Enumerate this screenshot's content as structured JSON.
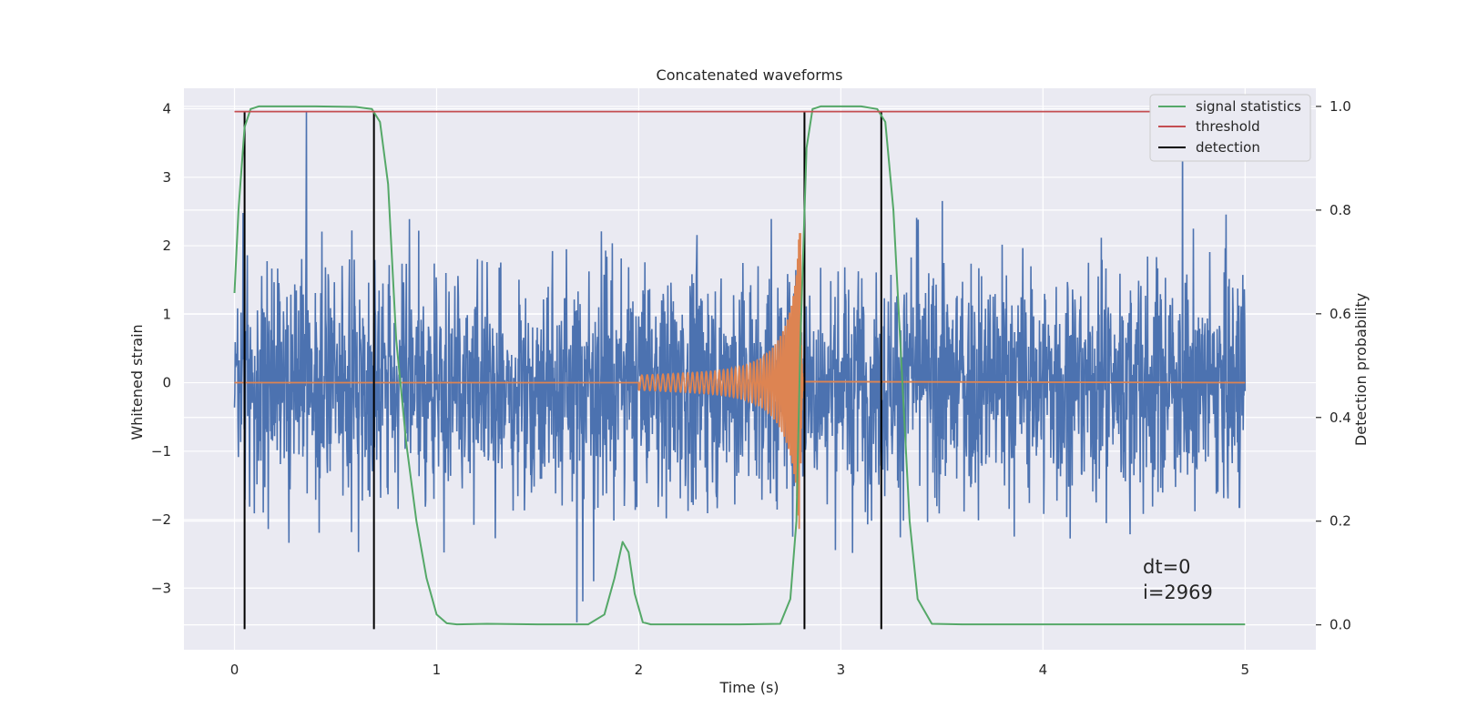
{
  "chart_data": {
    "type": "line",
    "title": "Concatenated waveforms",
    "xlabel": "Time (s)",
    "ylabel_left": "Whitened strain",
    "ylabel_right": "Detection probability",
    "xlim": [
      -0.25,
      5.35
    ],
    "ylim_left": [
      -3.9,
      4.3
    ],
    "ylim_right": [
      -0.048,
      1.035
    ],
    "xticks": [
      0,
      1,
      2,
      3,
      4,
      5
    ],
    "yticks_left": [
      -3,
      -2,
      -1,
      0,
      1,
      2,
      3,
      4
    ],
    "yticks_right": [
      0.0,
      0.2,
      0.4,
      0.6,
      0.8,
      1.0
    ],
    "xtick_labels": [
      "0",
      "1",
      "2",
      "3",
      "4",
      "5"
    ],
    "ytick_labels_left": [
      "−3",
      "−2",
      "−1",
      "0",
      "1",
      "2",
      "3",
      "4"
    ],
    "ytick_labels_right": [
      "0.0",
      "0.2",
      "0.4",
      "0.6",
      "0.8",
      "1.0"
    ],
    "grid": true,
    "legend_position": "top-right",
    "series": [
      {
        "name": "signal statistics",
        "axis": "right",
        "color": "#55a868",
        "x": [
          0.0,
          0.02,
          0.05,
          0.08,
          0.12,
          0.2,
          0.4,
          0.6,
          0.68,
          0.72,
          0.76,
          0.8,
          0.85,
          0.9,
          0.95,
          1.0,
          1.05,
          1.1,
          1.25,
          1.5,
          1.75,
          1.83,
          1.88,
          1.92,
          1.95,
          1.98,
          2.02,
          2.06,
          2.2,
          2.5,
          2.7,
          2.75,
          2.78,
          2.8,
          2.83,
          2.86,
          2.9,
          3.0,
          3.1,
          3.18,
          3.22,
          3.26,
          3.3,
          3.34,
          3.38,
          3.45,
          3.6,
          4.0,
          4.5,
          5.0
        ],
        "y": [
          0.64,
          0.8,
          0.96,
          0.995,
          1.0,
          1.0,
          1.0,
          0.999,
          0.995,
          0.97,
          0.85,
          0.55,
          0.35,
          0.2,
          0.09,
          0.02,
          0.003,
          0.001,
          0.002,
          0.001,
          0.001,
          0.02,
          0.09,
          0.16,
          0.14,
          0.06,
          0.005,
          0.001,
          0.001,
          0.001,
          0.002,
          0.05,
          0.2,
          0.55,
          0.92,
          0.995,
          1.0,
          1.0,
          1.0,
          0.995,
          0.97,
          0.8,
          0.5,
          0.2,
          0.05,
          0.002,
          0.001,
          0.001,
          0.001,
          0.001
        ]
      },
      {
        "name": "threshold",
        "axis": "right",
        "color": "#c44e52",
        "x": [
          0.0,
          5.0
        ],
        "y": [
          0.99,
          0.99
        ]
      },
      {
        "name": "detection",
        "axis": "left",
        "color": "#000000",
        "type": "vline",
        "x": [
          0.05,
          0.69,
          2.82,
          3.2
        ],
        "y_range": [
          -3.6,
          3.95
        ]
      }
    ],
    "unlabeled_series": [
      {
        "id": "whitened-noise",
        "axis": "left",
        "color": "#4c72b0",
        "x_range": [
          0.0,
          5.0
        ],
        "envelope_rms": 1.0,
        "min_approx": -3.5,
        "max_approx": 3.95
      },
      {
        "id": "injected-chirp",
        "axis": "left",
        "color": "#dd8452",
        "x_start": 2.0,
        "x_merger": 2.8,
        "peak_amplitude": 2.2
      }
    ],
    "annotations": [
      "dt=0",
      "i=2969"
    ]
  }
}
